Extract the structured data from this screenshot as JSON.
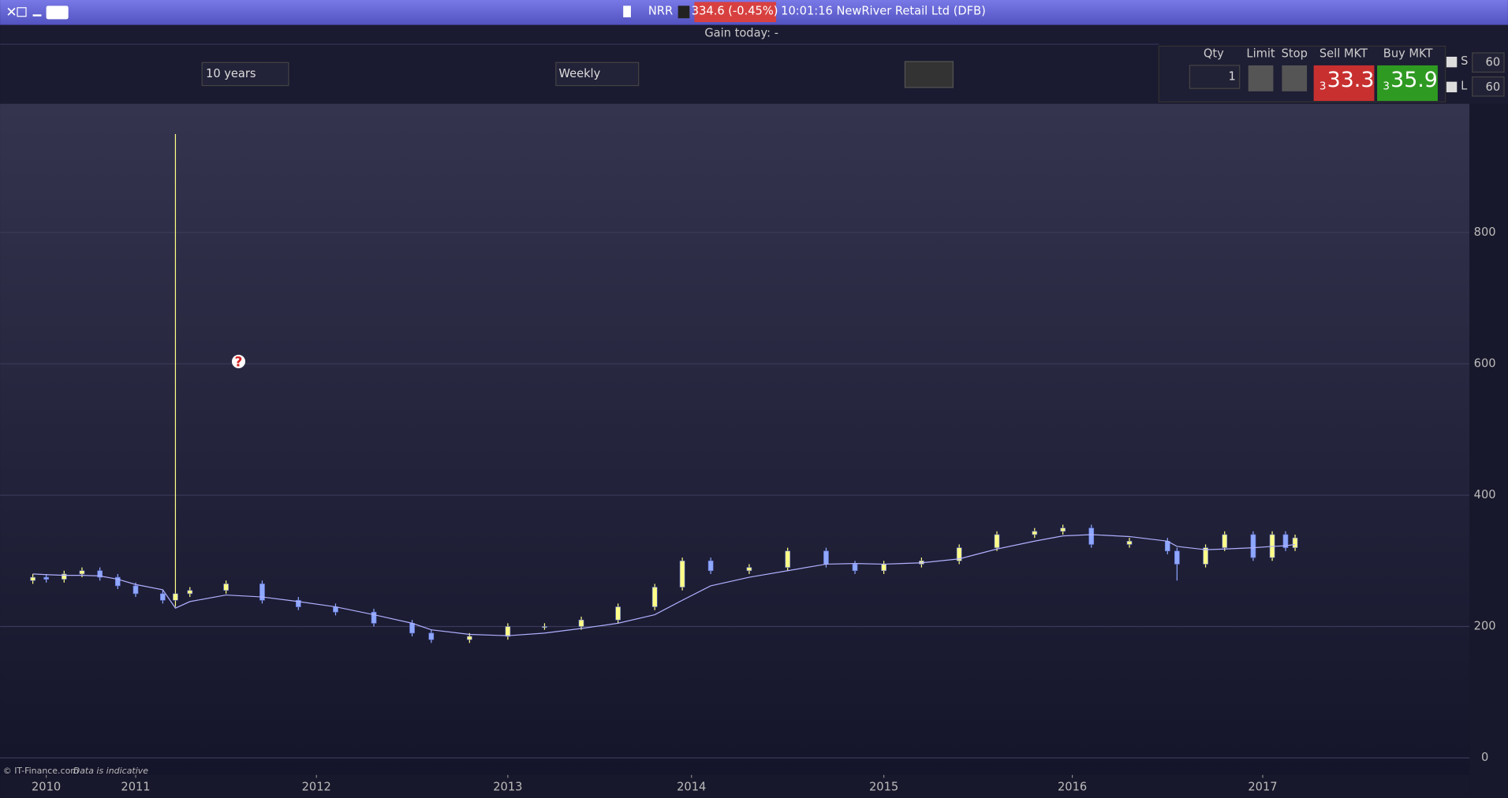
{
  "title_bar": {
    "symbol": "NRR",
    "price_change": "334.6 (-0.45%)",
    "description": "10:01:16 NewRiver Retail Ltd (DFB)"
  },
  "gain_today": "Gain today: -",
  "toolbar": {
    "period": "10 years",
    "interval": "Weekly"
  },
  "order_panel": {
    "qty_label": "Qty",
    "qty": "1",
    "limit_label": "Limit",
    "stop_label": "Stop",
    "sell_label": "Sell MKT",
    "sell_prefix": "3",
    "sell_price": "33.3",
    "buy_label": "Buy MKT",
    "buy_prefix": "3",
    "buy_price": "35.9",
    "s_label": "S",
    "s_value": "60",
    "l_label": "L",
    "l_value": "60"
  },
  "marker": "?",
  "footer": {
    "copyright": "© IT-Finance.com",
    "note": "Data is indicative"
  },
  "chart_data": {
    "type": "candlestick",
    "up_color": "#ffff88",
    "down_color": "#8fa8ff",
    "ma_color": "#b0b0ff",
    "x": [
      2009.85,
      2010.0,
      2010.2,
      2010.4,
      2010.6,
      2010.8,
      2011.0,
      2011.15,
      2011.22,
      2011.3,
      2011.5,
      2011.7,
      2011.9,
      2012.1,
      2012.3,
      2012.5,
      2012.6,
      2012.8,
      2013.0,
      2013.2,
      2013.4,
      2013.6,
      2013.8,
      2013.95,
      2014.1,
      2014.3,
      2014.5,
      2014.7,
      2014.85,
      2015.0,
      2015.2,
      2015.4,
      2015.6,
      2015.8,
      2015.95,
      2016.1,
      2016.3,
      2016.5,
      2016.55,
      2016.7,
      2016.8,
      2016.95,
      2017.05,
      2017.12,
      2017.17
    ],
    "open": [
      270,
      275,
      272,
      280,
      285,
      275,
      262,
      250,
      240,
      250,
      255,
      265,
      240,
      230,
      222,
      205,
      190,
      180,
      185,
      200,
      200,
      210,
      230,
      260,
      300,
      285,
      290,
      315,
      295,
      285,
      295,
      300,
      320,
      340,
      345,
      350,
      325,
      330,
      315,
      295,
      320,
      340,
      305,
      340,
      320
    ],
    "high": [
      280,
      280,
      285,
      290,
      290,
      280,
      267,
      255,
      950,
      260,
      270,
      270,
      245,
      235,
      227,
      210,
      195,
      190,
      205,
      205,
      215,
      235,
      265,
      305,
      305,
      295,
      320,
      320,
      300,
      300,
      305,
      325,
      345,
      350,
      355,
      355,
      335,
      335,
      320,
      325,
      345,
      345,
      345,
      345,
      340
    ],
    "low": [
      265,
      267,
      267,
      275,
      270,
      257,
      245,
      235,
      230,
      245,
      250,
      235,
      225,
      217,
      200,
      185,
      175,
      175,
      180,
      195,
      195,
      205,
      225,
      255,
      280,
      280,
      285,
      290,
      280,
      280,
      290,
      295,
      315,
      335,
      340,
      320,
      320,
      310,
      270,
      290,
      315,
      300,
      300,
      315,
      315
    ],
    "close": [
      275,
      272,
      280,
      285,
      275,
      262,
      250,
      240,
      250,
      255,
      265,
      240,
      230,
      222,
      205,
      190,
      180,
      185,
      200,
      200,
      210,
      230,
      260,
      300,
      285,
      290,
      315,
      295,
      285,
      295,
      300,
      320,
      340,
      345,
      350,
      325,
      330,
      315,
      295,
      320,
      340,
      305,
      340,
      320,
      335
    ],
    "ma": [
      280,
      279,
      278,
      278,
      277,
      272,
      264,
      256,
      228,
      238,
      248,
      245,
      238,
      230,
      218,
      205,
      195,
      188,
      186,
      190,
      197,
      205,
      218,
      240,
      262,
      275,
      285,
      295,
      296,
      295,
      297,
      303,
      318,
      330,
      338,
      340,
      337,
      330,
      322,
      317,
      318,
      320,
      322,
      323,
      325
    ],
    "xticks": [
      2010,
      2011,
      2012,
      2013,
      2014,
      2015,
      2016,
      2017
    ],
    "ylim": [
      -26,
      996
    ],
    "yticks": [
      0,
      200,
      400,
      600,
      800
    ],
    "grid": true
  }
}
